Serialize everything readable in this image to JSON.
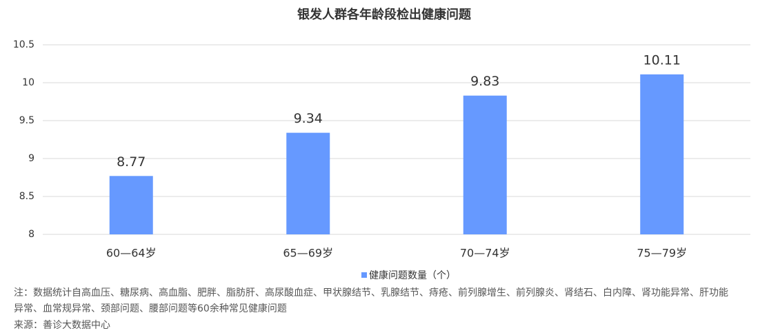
{
  "chart_data": {
    "type": "bar",
    "title": "银发人群各年龄段检出健康问题",
    "categories": [
      "60—64岁",
      "65—69岁",
      "70—74岁",
      "75—79岁"
    ],
    "series": [
      {
        "name": "健康问题数量（个）",
        "color": "#6699ff",
        "values": [
          8.77,
          9.34,
          9.83,
          10.11
        ]
      }
    ],
    "ylim": [
      8,
      10.5
    ],
    "yticks": [
      8,
      8.5,
      9,
      9.5,
      10,
      10.5
    ],
    "grid": true,
    "legend": "bottom",
    "note": "注：数据统计自高血压、糖尿病、高血脂、肥胖、脂肪肝、高尿酸血症、甲状腺结节、乳腺结节、痔疮、前列腺增生、前列腺炎、肾结石、白内障、肾功能异常、肝功能异常、血常规异常、颈部问题、腰部问题等60余种常见健康问题",
    "source": "来源：善诊大数据中心"
  }
}
